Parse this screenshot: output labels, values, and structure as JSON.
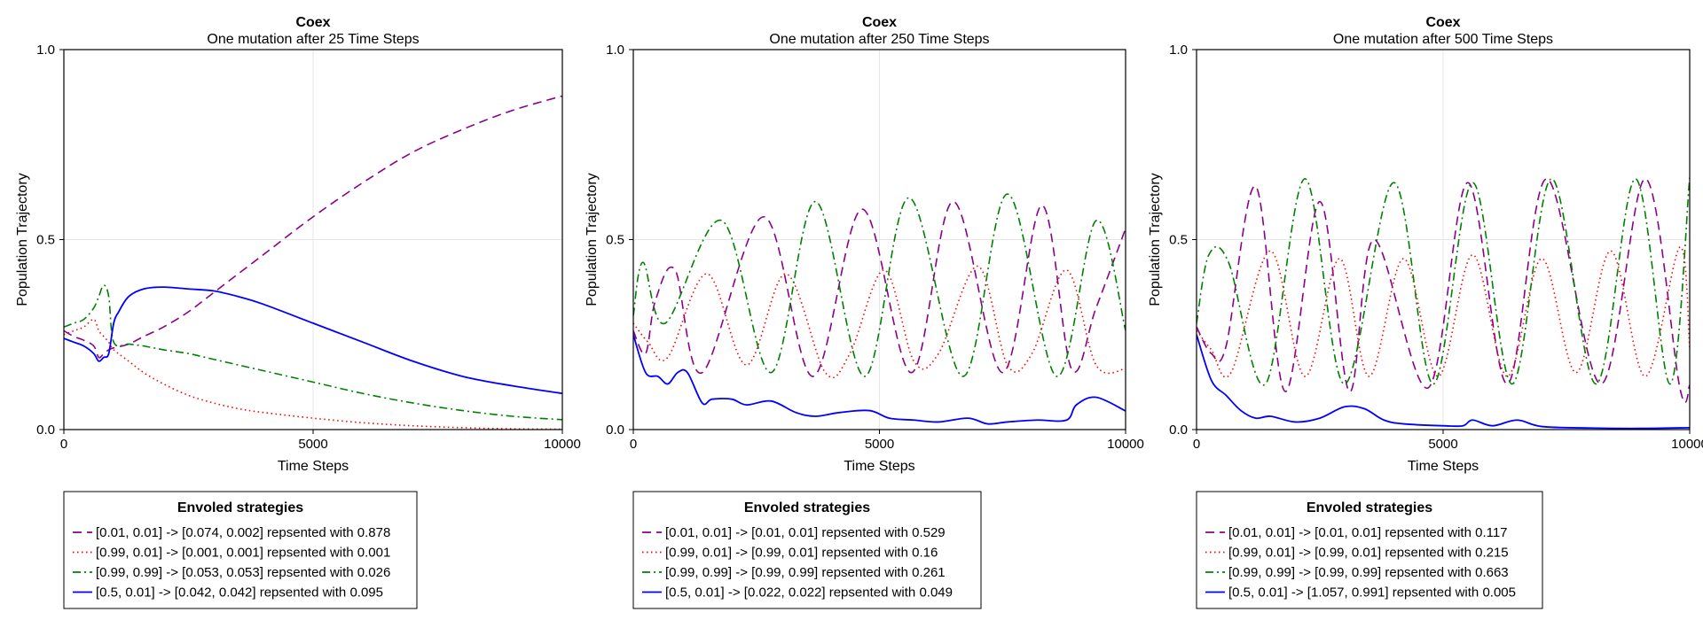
{
  "chart_data": [
    {
      "type": "line",
      "title": "Coex",
      "subtitle": "One mutation after 25 Time Steps",
      "xlabel": "Time Steps",
      "ylabel": "Population Trajectory",
      "xlim": [
        0,
        10000
      ],
      "ylim": [
        0,
        1
      ],
      "xticks": [
        "0",
        "5000",
        "10000"
      ],
      "yticks": [
        "0.0",
        "0.5",
        "1.0"
      ],
      "legend_title": "Envoled strategies",
      "series": [
        {
          "name": "[0.01, 0.01] -> [0.074, 0.002] repsented with 0.878",
          "color": "#8b008b",
          "dash": "dashed",
          "x": [
            0,
            200,
            400,
            600,
            700,
            800,
            900,
            1000,
            1300,
            1600,
            2000,
            2500,
            3000,
            4000,
            5000,
            6000,
            7000,
            8000,
            9000,
            10000
          ],
          "y": [
            0.26,
            0.245,
            0.235,
            0.22,
            0.19,
            0.2,
            0.21,
            0.215,
            0.225,
            0.245,
            0.27,
            0.31,
            0.36,
            0.46,
            0.56,
            0.65,
            0.73,
            0.79,
            0.84,
            0.878
          ]
        },
        {
          "name": "[0.99, 0.01] -> [0.001, 0.001] repsented with 0.001",
          "color": "#ff0000",
          "dash": "dotted",
          "x": [
            0,
            200,
            400,
            600,
            700,
            800,
            900,
            1000,
            1300,
            1600,
            2000,
            2500,
            3000,
            3500,
            4000,
            5000,
            6000,
            7000,
            8000,
            9000,
            10000
          ],
          "y": [
            0.25,
            0.26,
            0.27,
            0.29,
            0.26,
            0.245,
            0.23,
            0.21,
            0.18,
            0.15,
            0.12,
            0.09,
            0.07,
            0.055,
            0.045,
            0.03,
            0.018,
            0.01,
            0.005,
            0.002,
            0.001
          ]
        },
        {
          "name": "[0.99, 0.99] -> [0.053, 0.053] repsented with 0.026",
          "color": "#008000",
          "dash": "dashdot",
          "x": [
            0,
            200,
            400,
            600,
            700,
            800,
            900,
            1000,
            1300,
            1600,
            2000,
            2500,
            3000,
            4000,
            5000,
            6000,
            7000,
            8000,
            9000,
            10000
          ],
          "y": [
            0.27,
            0.28,
            0.29,
            0.32,
            0.35,
            0.38,
            0.35,
            0.23,
            0.225,
            0.22,
            0.21,
            0.2,
            0.185,
            0.155,
            0.125,
            0.095,
            0.07,
            0.05,
            0.035,
            0.026
          ]
        },
        {
          "name": "[0.5, 0.01] -> [0.042, 0.042] repsented with 0.095",
          "color": "#0000ff",
          "dash": "solid",
          "x": [
            0,
            200,
            400,
            600,
            700,
            800,
            900,
            1000,
            1100,
            1300,
            1600,
            2000,
            2500,
            3000,
            3500,
            4000,
            5000,
            6000,
            7000,
            8000,
            9000,
            10000
          ],
          "y": [
            0.24,
            0.23,
            0.22,
            0.2,
            0.18,
            0.19,
            0.2,
            0.28,
            0.31,
            0.35,
            0.37,
            0.375,
            0.37,
            0.365,
            0.35,
            0.33,
            0.28,
            0.23,
            0.18,
            0.14,
            0.115,
            0.095
          ]
        }
      ]
    },
    {
      "type": "line",
      "title": "Coex",
      "subtitle": "One mutation after 250 Time Steps",
      "xlabel": "Time Steps",
      "ylabel": "Population Trajectory",
      "xlim": [
        0,
        10000
      ],
      "ylim": [
        0,
        1
      ],
      "xticks": [
        "0",
        "5000",
        "10000"
      ],
      "yticks": [
        "0.0",
        "0.5",
        "1.0"
      ],
      "legend_title": "Envoled strategies",
      "series": [
        {
          "name": "[0.01, 0.01] -> [0.01, 0.01] repsented with 0.529",
          "color": "#8b008b",
          "dash": "dashed",
          "x": [
            0,
            250,
            450,
            850,
            1400,
            2650,
            3650,
            4650,
            5650,
            6500,
            7500,
            8300,
            8900,
            9400,
            10000
          ],
          "y": [
            0.26,
            0.2,
            0.34,
            0.42,
            0.15,
            0.56,
            0.14,
            0.58,
            0.15,
            0.6,
            0.15,
            0.59,
            0.16,
            0.32,
            0.529
          ]
        },
        {
          "name": "[0.99, 0.01] -> [0.99, 0.01] repsented with 0.16",
          "color": "#ff0000",
          "dash": "dotted",
          "x": [
            0,
            300,
            700,
            1500,
            2300,
            3100,
            3900,
            4400,
            5100,
            5700,
            6200,
            7000,
            7600,
            8100,
            8800,
            9400,
            10000
          ],
          "y": [
            0.28,
            0.23,
            0.19,
            0.41,
            0.17,
            0.41,
            0.15,
            0.2,
            0.42,
            0.18,
            0.2,
            0.43,
            0.17,
            0.2,
            0.42,
            0.17,
            0.16
          ]
        },
        {
          "name": "[0.99, 0.99] -> [0.99, 0.99] repsented with 0.261",
          "color": "#008000",
          "dash": "dashdot",
          "x": [
            0,
            200,
            650,
            1800,
            2800,
            3700,
            4700,
            5600,
            6700,
            7600,
            8600,
            9400,
            10000
          ],
          "y": [
            0.3,
            0.44,
            0.28,
            0.55,
            0.15,
            0.6,
            0.14,
            0.61,
            0.14,
            0.62,
            0.14,
            0.55,
            0.261
          ]
        },
        {
          "name": "[0.5, 0.01] -> [0.022, 0.022] repsented with 0.049",
          "color": "#0000ff",
          "dash": "solid",
          "x": [
            0,
            250,
            500,
            700,
            900,
            1100,
            1400,
            1600,
            2000,
            2300,
            2800,
            3300,
            3700,
            4200,
            4800,
            5200,
            5700,
            6200,
            6800,
            7200,
            7600,
            8200,
            8800,
            9000,
            9400,
            10000
          ],
          "y": [
            0.25,
            0.15,
            0.14,
            0.12,
            0.15,
            0.15,
            0.07,
            0.08,
            0.08,
            0.065,
            0.075,
            0.045,
            0.035,
            0.045,
            0.05,
            0.03,
            0.025,
            0.02,
            0.03,
            0.015,
            0.02,
            0.025,
            0.025,
            0.065,
            0.085,
            0.049
          ]
        }
      ]
    },
    {
      "type": "line",
      "title": "Coex",
      "subtitle": "One mutation after 500 Time Steps",
      "xlabel": "Time Steps",
      "ylabel": "Population Trajectory",
      "xlim": [
        0,
        10000
      ],
      "ylim": [
        0,
        1
      ],
      "xticks": [
        "0",
        "5000",
        "10000"
      ],
      "yticks": [
        "0.0",
        "0.5",
        "1.0"
      ],
      "legend_title": "Envoled strategies",
      "series": [
        {
          "name": "[0.01, 0.01] -> [0.01, 0.01] repsented with 0.117",
          "color": "#8b008b",
          "dash": "dashed",
          "x": [
            0,
            300,
            600,
            1200,
            1800,
            2500,
            3100,
            3600,
            4700,
            5500,
            6300,
            7100,
            8200,
            9100,
            9800,
            10000
          ],
          "y": [
            0.27,
            0.2,
            0.22,
            0.64,
            0.1,
            0.6,
            0.1,
            0.5,
            0.11,
            0.65,
            0.12,
            0.66,
            0.12,
            0.66,
            0.11,
            0.117
          ]
        },
        {
          "name": "[0.99, 0.01] -> [0.99, 0.01] repsented with 0.215",
          "color": "#ff0000",
          "dash": "dotted",
          "x": [
            0,
            300,
            700,
            1500,
            2200,
            2900,
            3500,
            4200,
            4900,
            5600,
            6300,
            7000,
            7700,
            8400,
            9100,
            9800,
            10000
          ],
          "y": [
            0.26,
            0.21,
            0.15,
            0.47,
            0.14,
            0.45,
            0.14,
            0.45,
            0.14,
            0.46,
            0.14,
            0.45,
            0.15,
            0.47,
            0.14,
            0.48,
            0.215
          ]
        },
        {
          "name": "[0.99, 0.99] -> [0.99, 0.99] repsented with 0.663",
          "color": "#008000",
          "dash": "dashdot",
          "x": [
            0,
            250,
            650,
            1400,
            2200,
            3000,
            4000,
            4800,
            5600,
            6400,
            7200,
            8100,
            8900,
            9600,
            10000
          ],
          "y": [
            0.28,
            0.46,
            0.44,
            0.12,
            0.66,
            0.12,
            0.65,
            0.12,
            0.65,
            0.12,
            0.66,
            0.12,
            0.66,
            0.12,
            0.663
          ]
        },
        {
          "name": "[0.5, 0.01] -> [1.057, 0.991] repsented with 0.005",
          "color": "#0000ff",
          "dash": "solid",
          "x": [
            0,
            300,
            600,
            900,
            1200,
            1500,
            2000,
            2500,
            3000,
            3400,
            3800,
            4200,
            5000,
            5400,
            5600,
            6000,
            6500,
            7000,
            8000,
            9000,
            10000
          ],
          "y": [
            0.25,
            0.13,
            0.09,
            0.05,
            0.03,
            0.035,
            0.02,
            0.03,
            0.06,
            0.055,
            0.025,
            0.015,
            0.01,
            0.01,
            0.025,
            0.01,
            0.025,
            0.008,
            0.004,
            0.003,
            0.005
          ]
        }
      ]
    }
  ]
}
